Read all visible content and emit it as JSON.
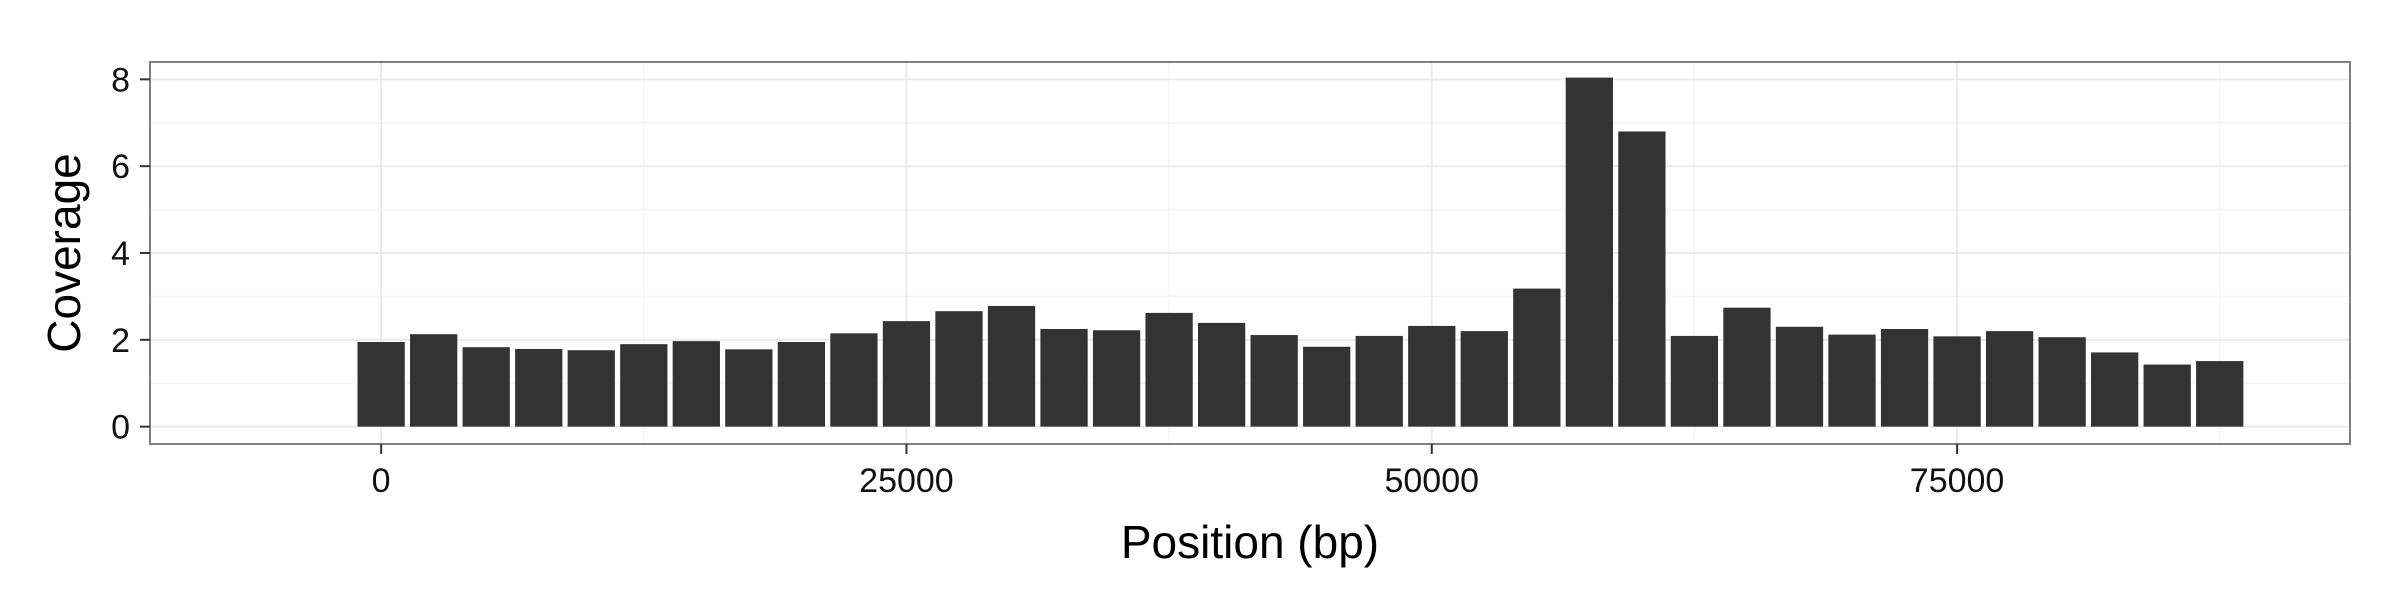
{
  "chart_data": {
    "type": "bar",
    "title": "",
    "xlabel": "Position (bp)",
    "ylabel": "Coverage",
    "xlim": [
      -11000,
      93700
    ],
    "ylim": [
      -0.4,
      8.4
    ],
    "xticks": [
      0,
      25000,
      50000,
      75000
    ],
    "xtick_labels": [
      "0",
      "25000",
      "50000",
      "75000"
    ],
    "yticks": [
      0,
      2,
      4,
      6,
      8
    ],
    "ytick_labels": [
      "0",
      "2",
      "4",
      "6",
      "8"
    ],
    "bin_width": 2500,
    "grid": true,
    "legend": "none",
    "colors": {
      "bar": "#333333",
      "grid_major": "#ebebeb",
      "grid_minor": "#f5f5f5",
      "border": "#7f7f7f",
      "background": "#ffffff"
    },
    "x": [
      0,
      2500,
      5000,
      7500,
      10000,
      12500,
      15000,
      17500,
      20000,
      22500,
      25000,
      27500,
      30000,
      32500,
      35000,
      37500,
      40000,
      42500,
      45000,
      47500,
      50000,
      52500,
      55000,
      57500,
      60000,
      62500,
      65000,
      67500,
      70000,
      72500,
      75000,
      77500,
      80000,
      82500,
      85000,
      87500
    ],
    "values": [
      1.95,
      2.13,
      1.83,
      1.79,
      1.76,
      1.9,
      1.97,
      1.78,
      1.95,
      2.15,
      2.43,
      2.66,
      2.78,
      2.25,
      2.22,
      2.62,
      2.39,
      2.11,
      1.84,
      2.09,
      2.32,
      2.2,
      3.18,
      8.04,
      6.8,
      2.09,
      2.74,
      2.3,
      2.12,
      2.25,
      2.08,
      2.2,
      2.06,
      1.71,
      1.43,
      1.51
    ]
  }
}
